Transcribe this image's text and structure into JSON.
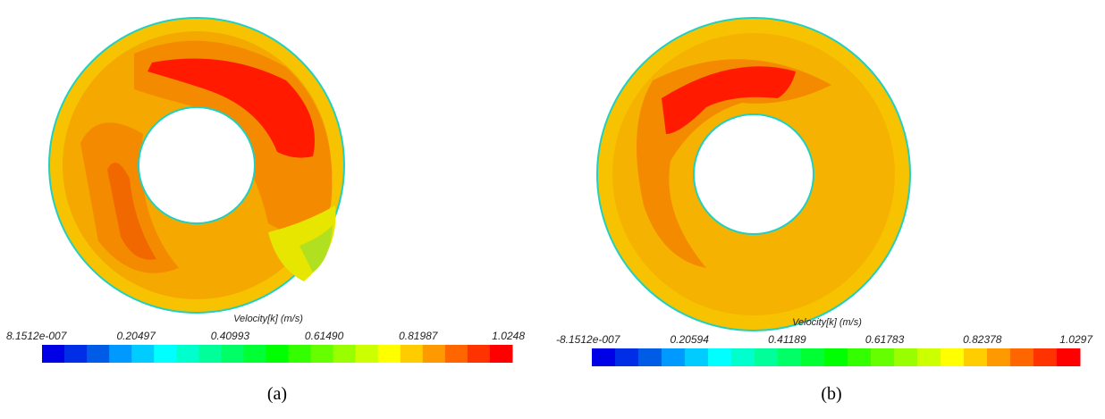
{
  "panels": [
    {
      "label": "(a)",
      "colorbar": {
        "title": "Velocity[k] (m/s)",
        "ticks": [
          "8.1512e-007",
          "0.20497",
          "0.40993",
          "0.61490",
          "0.81987",
          "1.0248"
        ]
      }
    },
    {
      "label": "(b)",
      "colorbar": {
        "title": "Velocity[k] (m/s)",
        "ticks": [
          "-8.1512e-007",
          "0.20594",
          "0.41189",
          "0.61783",
          "0.82378",
          "1.0297"
        ]
      }
    }
  ]
}
